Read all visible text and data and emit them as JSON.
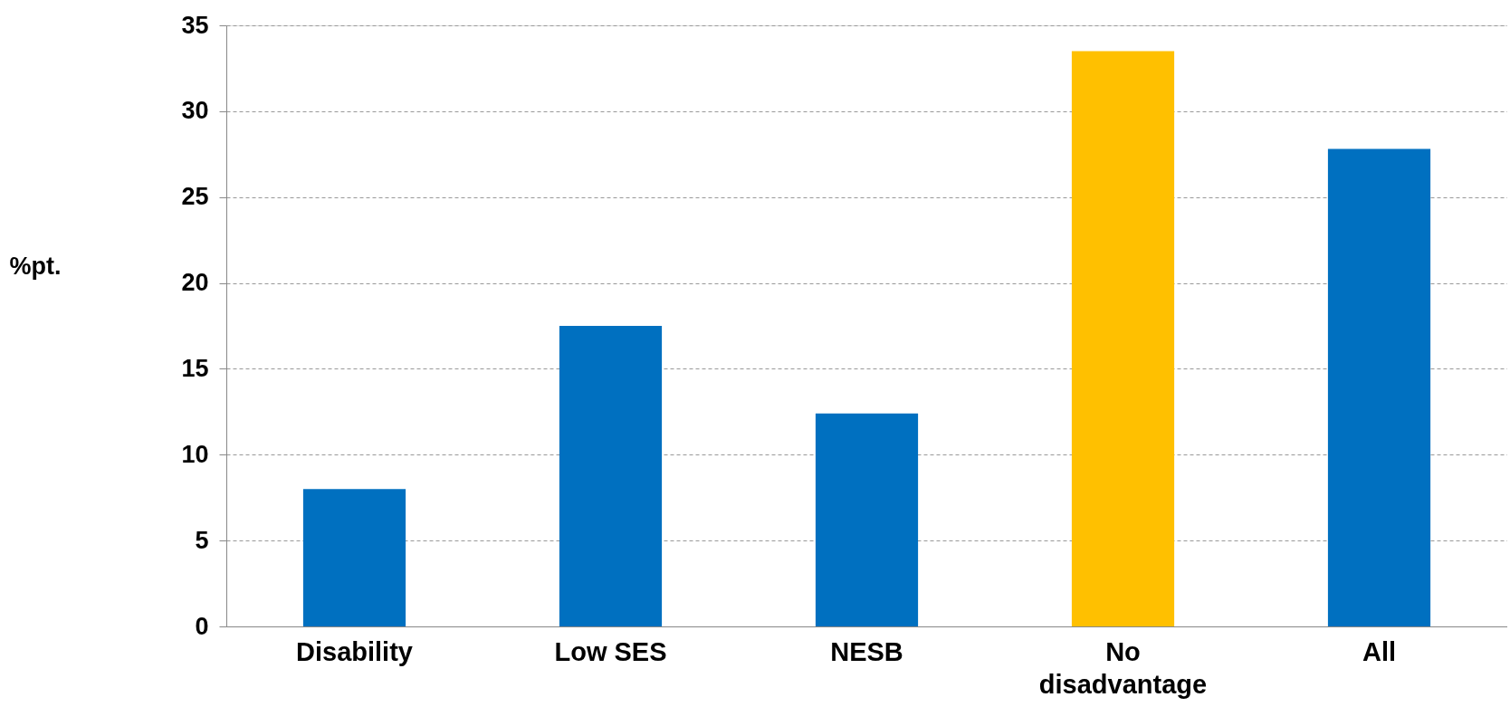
{
  "chart_data": {
    "type": "bar",
    "ylabel": "%pt.",
    "categories": [
      "Disability",
      "Low SES",
      "NESB",
      "No\ndisadvantage",
      "All"
    ],
    "values": [
      8.0,
      17.5,
      12.4,
      33.5,
      27.8
    ],
    "colors": [
      "#0070c0",
      "#0070c0",
      "#0070c0",
      "#ffc000",
      "#0070c0"
    ],
    "ylim": [
      0,
      35
    ],
    "yticks": [
      0,
      5,
      10,
      15,
      20,
      25,
      30,
      35
    ],
    "grid": "y"
  }
}
